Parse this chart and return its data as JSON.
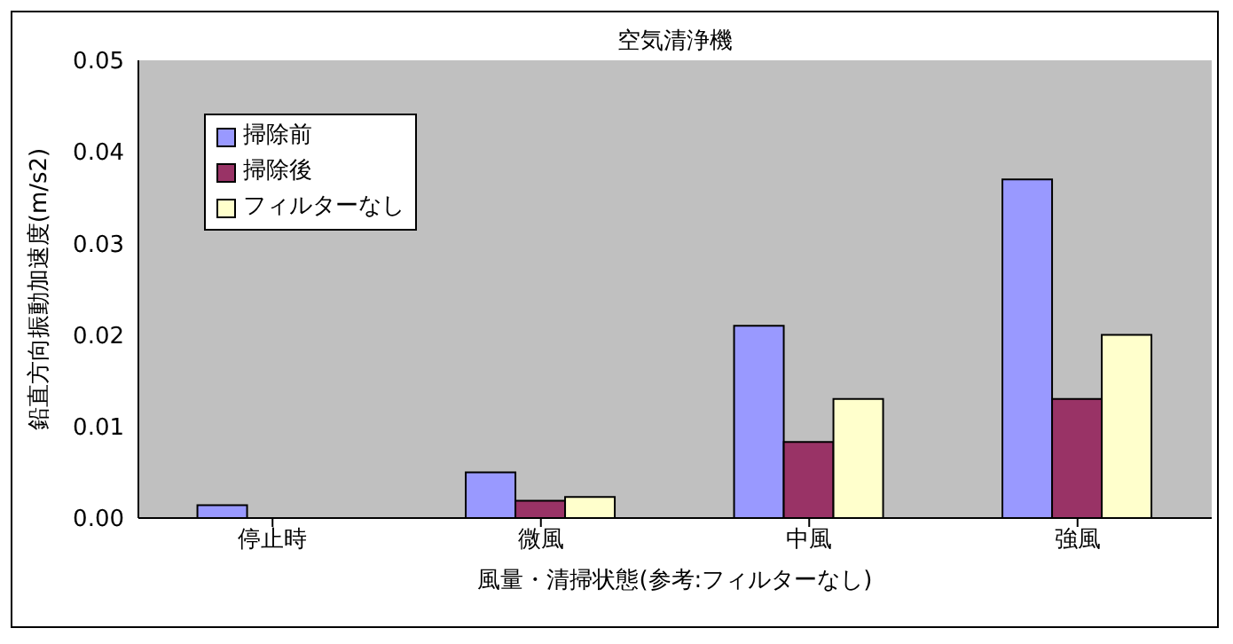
{
  "chart_data": {
    "type": "bar",
    "title": "空気清浄機",
    "xlabel": "風量・清掃状態(参考:フィルターなし)",
    "ylabel": "鉛直方向振動加速度(m/s2)",
    "categories": [
      "停止時",
      "微風",
      "中風",
      "強風"
    ],
    "series": [
      {
        "name": "掃除前",
        "color": "#9999ff",
        "values": [
          0.0014,
          0.005,
          0.021,
          0.037
        ]
      },
      {
        "name": "掃除後",
        "color": "#993366",
        "values": [
          0,
          0.0019,
          0.0083,
          0.013
        ]
      },
      {
        "name": "フィルターなし",
        "color": "#ffffcc",
        "values": [
          0,
          0.0023,
          0.013,
          0.02
        ]
      }
    ],
    "ylim": [
      0,
      0.05
    ],
    "yticks": [
      {
        "value": 0,
        "label": "0.00"
      },
      {
        "value": 0.01,
        "label": "0.01"
      },
      {
        "value": 0.02,
        "label": "0.02"
      },
      {
        "value": 0.03,
        "label": "0.03"
      },
      {
        "value": 0.04,
        "label": "0.04"
      },
      {
        "value": 0.05,
        "label": "0.05"
      }
    ],
    "grid": false,
    "legend": "top left"
  }
}
